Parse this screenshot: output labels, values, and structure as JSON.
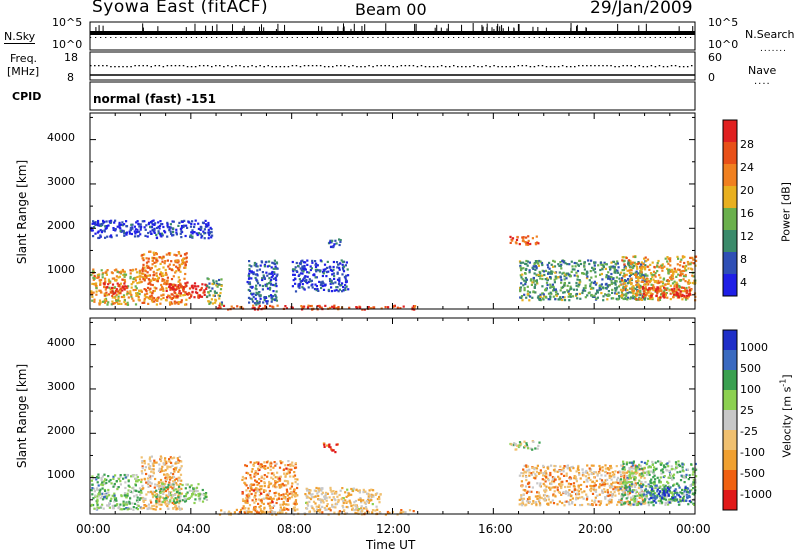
{
  "header": {
    "station": "Syowa East (fitACF)",
    "beam": "Beam 00",
    "date": "29/Jan/2009",
    "cpid_label": "CPID",
    "cpid_value": "normal (fast) -151"
  },
  "nsky_panel": {
    "left_label": "N.Sky",
    "right_label": "N.Search",
    "left_ticks": [
      "10^5",
      "10^0"
    ],
    "right_ticks": [
      "10^5",
      "10^0"
    ]
  },
  "freq_panel": {
    "left_label_1": "Freq.",
    "left_label_2": "[MHz]",
    "right_label": "Nave",
    "left_ticks": [
      "18",
      "8"
    ],
    "right_ticks": [
      "60",
      "0"
    ]
  },
  "colors": {
    "power_scale": [
      "#1f1fe6",
      "#2f4fb5",
      "#3a8a6a",
      "#6ab04c",
      "#e8b020",
      "#f08020",
      "#e85018",
      "#e02020"
    ],
    "velocity_scale": [
      "#e01818",
      "#f06010",
      "#f0a030",
      "#f0c070",
      "#c8c8c8",
      "#8cd050",
      "#3aa050",
      "#3a6ac0",
      "#1f2fc8"
    ]
  },
  "chart_data": [
    {
      "type": "heatmap",
      "title": "Power",
      "ylabel": "Slant Range [km]",
      "xlabel": "",
      "x_ticks": [
        "00:00",
        "04:00",
        "08:00",
        "12:00",
        "16:00",
        "20:00",
        "00:00"
      ],
      "y_ticks": [
        "1000",
        "2000",
        "3000",
        "4000"
      ],
      "ylim": [
        180,
        4600
      ],
      "colorbar": {
        "label": "Power [dB]",
        "ticks": [
          "4",
          "8",
          "12",
          "16",
          "20",
          "24",
          "28"
        ],
        "range": [
          0,
          30
        ]
      },
      "scatter_regions": [
        {
          "t": [
            0.0,
            2.0
          ],
          "r": [
            300,
            1100
          ],
          "level": 0.6
        },
        {
          "t": [
            0.5,
            1.5
          ],
          "r": [
            550,
            800
          ],
          "level": 0.9
        },
        {
          "t": [
            2.0,
            3.8
          ],
          "r": [
            300,
            1500
          ],
          "level": 0.7
        },
        {
          "t": [
            3.0,
            4.6
          ],
          "r": [
            450,
            800
          ],
          "level": 0.95
        },
        {
          "t": [
            4.6,
            5.2
          ],
          "r": [
            300,
            900
          ],
          "level": 0.4
        },
        {
          "t": [
            0.0,
            4.8
          ],
          "r": [
            1800,
            2200
          ],
          "level": 0.1
        },
        {
          "t": [
            6.2,
            7.4
          ],
          "r": [
            300,
            1300
          ],
          "level": 0.2
        },
        {
          "t": [
            8.0,
            10.2
          ],
          "r": [
            600,
            1300
          ],
          "level": 0.15
        },
        {
          "t": [
            9.4,
            10.0
          ],
          "r": [
            1600,
            1800
          ],
          "level": 0.2
        },
        {
          "t": [
            16.6,
            17.8
          ],
          "r": [
            1650,
            1850
          ],
          "level": 0.8
        },
        {
          "t": [
            17.0,
            22.0
          ],
          "r": [
            400,
            1300
          ],
          "level": 0.35
        },
        {
          "t": [
            21.0,
            24.0
          ],
          "r": [
            400,
            1400
          ],
          "level": 0.6
        },
        {
          "t": [
            21.8,
            23.8
          ],
          "r": [
            450,
            700
          ],
          "level": 0.9
        },
        {
          "t": [
            5.0,
            13.0
          ],
          "r": [
            190,
            280
          ],
          "level": 0.85
        }
      ]
    },
    {
      "type": "heatmap",
      "title": "Velocity",
      "ylabel": "Slant Range [km]",
      "xlabel": "Time UT",
      "x_ticks": [
        "00:00",
        "04:00",
        "08:00",
        "12:00",
        "16:00",
        "20:00",
        "00:00"
      ],
      "y_ticks": [
        "1000",
        "2000",
        "3000",
        "4000"
      ],
      "ylim": [
        180,
        4600
      ],
      "colorbar": {
        "label": "Velocity [m s^-1]",
        "ticks": [
          "-1000",
          "-500",
          "-100",
          "-25",
          "25",
          "100",
          "500",
          "1000"
        ]
      },
      "scatter_regions": [
        {
          "t": [
            0.0,
            2.0
          ],
          "r": [
            300,
            1100
          ],
          "level": 0.62
        },
        {
          "t": [
            2.0,
            3.6
          ],
          "r": [
            300,
            1500
          ],
          "level": 0.35
        },
        {
          "t": [
            2.5,
            4.6
          ],
          "r": [
            450,
            900
          ],
          "level": 0.6
        },
        {
          "t": [
            6.0,
            8.2
          ],
          "r": [
            300,
            1400
          ],
          "level": 0.28
        },
        {
          "t": [
            9.2,
            9.8
          ],
          "r": [
            1600,
            1800
          ],
          "level": 0.08
        },
        {
          "t": [
            8.5,
            11.5
          ],
          "r": [
            300,
            800
          ],
          "level": 0.4
        },
        {
          "t": [
            5.0,
            13.0
          ],
          "r": [
            190,
            300
          ],
          "level": 0.32
        },
        {
          "t": [
            16.6,
            17.8
          ],
          "r": [
            1650,
            1850
          ],
          "level": 0.55
        },
        {
          "t": [
            17.0,
            22.0
          ],
          "r": [
            400,
            1300
          ],
          "level": 0.35
        },
        {
          "t": [
            21.0,
            24.0
          ],
          "r": [
            400,
            1400
          ],
          "level": 0.65
        },
        {
          "t": [
            22.0,
            23.8
          ],
          "r": [
            450,
            800
          ],
          "level": 0.85
        }
      ]
    }
  ]
}
